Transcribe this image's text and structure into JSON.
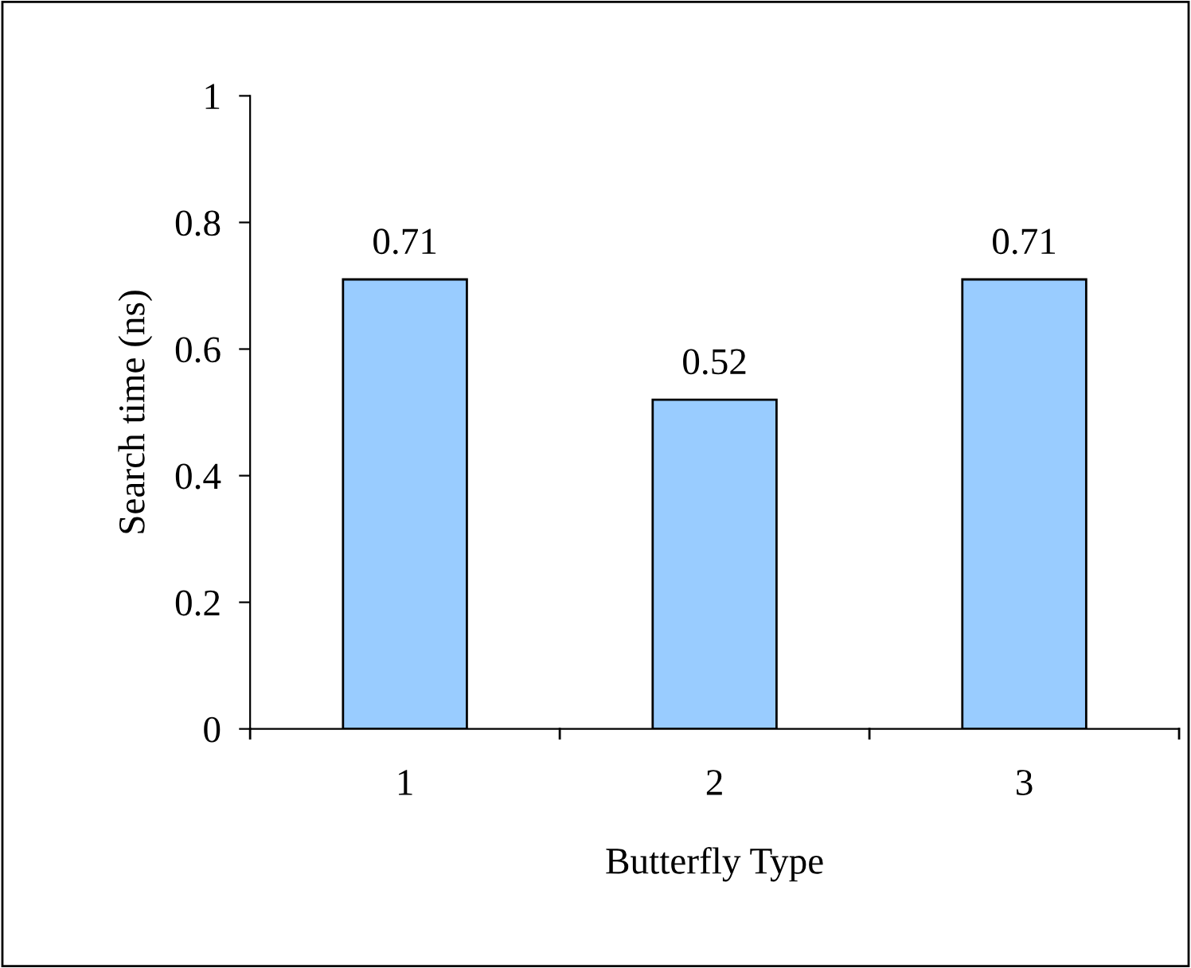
{
  "chart_data": {
    "type": "bar",
    "xlabel": "Butterfly Type",
    "ylabel": "Search time (ns)",
    "categories": [
      "1",
      "2",
      "3"
    ],
    "values": [
      0.71,
      0.52,
      0.71
    ],
    "color": "#99ccff",
    "ylim": [
      0,
      1
    ],
    "yticks": [
      0,
      0.2,
      0.4,
      0.6,
      0.8,
      1
    ],
    "data_labels": true,
    "grid": false,
    "legend": false
  }
}
